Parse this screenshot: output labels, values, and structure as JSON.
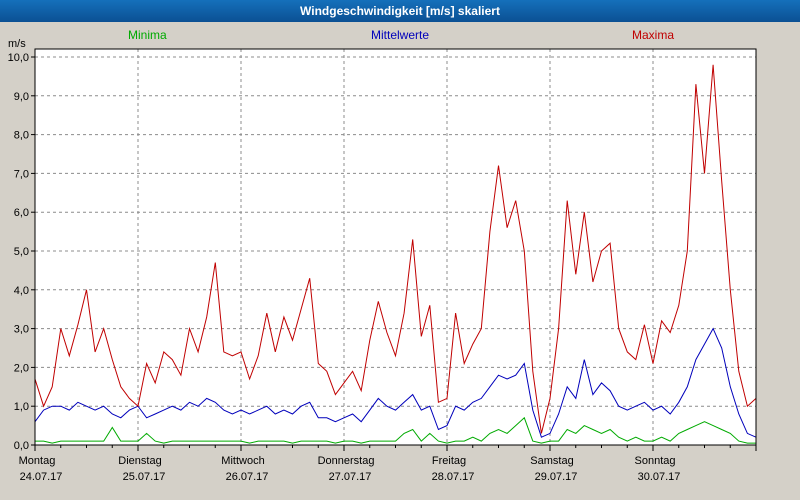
{
  "window": {
    "title": "Windgeschwindigkeit [m/s] skaliert"
  },
  "chart_data": {
    "type": "line",
    "title": "Windgeschwindigkeit [m/s] skaliert",
    "ylabel": "m/s",
    "ylim": [
      0,
      10
    ],
    "grid": true,
    "legend_position": "top",
    "y_ticks": [
      0,
      1,
      2,
      3,
      4,
      5,
      6,
      7,
      8,
      9,
      10
    ],
    "y_tick_labels": [
      "0,0",
      "1,0",
      "2,0",
      "3,0",
      "4,0",
      "5,0",
      "6,0",
      "7,0",
      "8,0",
      "9,0",
      "10,0"
    ],
    "x_days": [
      {
        "name": "Montag",
        "date": "24.07.17"
      },
      {
        "name": "Dienstag",
        "date": "25.07.17"
      },
      {
        "name": "Mittwoch",
        "date": "26.07.17"
      },
      {
        "name": "Donnerstag",
        "date": "27.07.17"
      },
      {
        "name": "Freitag",
        "date": "28.07.17"
      },
      {
        "name": "Samstag",
        "date": "29.07.17"
      },
      {
        "name": "Sonntag",
        "date": "30.07.17"
      }
    ],
    "sample_interval_hours": 2,
    "series": [
      {
        "name": "Minima",
        "color": "#00aa00",
        "values": [
          0.1,
          0.1,
          0.05,
          0.1,
          0.1,
          0.1,
          0.1,
          0.1,
          0.1,
          0.45,
          0.1,
          0.1,
          0.1,
          0.3,
          0.1,
          0.05,
          0.1,
          0.1,
          0.1,
          0.1,
          0.1,
          0.1,
          0.1,
          0.1,
          0.1,
          0.05,
          0.1,
          0.1,
          0.1,
          0.1,
          0.05,
          0.1,
          0.1,
          0.1,
          0.1,
          0.05,
          0.1,
          0.1,
          0.05,
          0.1,
          0.1,
          0.1,
          0.1,
          0.3,
          0.4,
          0.1,
          0.3,
          0.1,
          0.05,
          0.1,
          0.1,
          0.2,
          0.1,
          0.3,
          0.4,
          0.3,
          0.5,
          0.7,
          0.1,
          0.05,
          0.1,
          0.1,
          0.4,
          0.3,
          0.5,
          0.4,
          0.3,
          0.4,
          0.2,
          0.1,
          0.2,
          0.1,
          0.1,
          0.2,
          0.1,
          0.3,
          0.4,
          0.5,
          0.6,
          0.5,
          0.4,
          0.3,
          0.1,
          0.05,
          0.05
        ]
      },
      {
        "name": "Mittelwerte",
        "color": "#0000bb",
        "values": [
          0.6,
          0.9,
          1.0,
          1.0,
          0.9,
          1.1,
          1.0,
          0.9,
          1.0,
          0.8,
          0.7,
          0.9,
          1.0,
          0.7,
          0.8,
          0.9,
          1.0,
          0.9,
          1.1,
          1.0,
          1.2,
          1.1,
          0.9,
          0.8,
          0.9,
          0.8,
          0.9,
          1.0,
          0.8,
          0.9,
          0.8,
          1.0,
          1.1,
          0.7,
          0.7,
          0.6,
          0.7,
          0.8,
          0.6,
          0.9,
          1.2,
          1.0,
          0.9,
          1.1,
          1.3,
          0.9,
          1.0,
          0.4,
          0.5,
          1.0,
          0.9,
          1.1,
          1.2,
          1.5,
          1.8,
          1.7,
          1.8,
          2.1,
          0.9,
          0.2,
          0.3,
          0.8,
          1.5,
          1.2,
          2.2,
          1.3,
          1.6,
          1.4,
          1.0,
          0.9,
          1.0,
          1.1,
          0.9,
          1.0,
          0.8,
          1.1,
          1.5,
          2.2,
          2.6,
          3.0,
          2.5,
          1.5,
          0.8,
          0.3,
          0.2
        ]
      },
      {
        "name": "Maxima",
        "color": "#c00000",
        "values": [
          1.7,
          1.0,
          1.5,
          3.0,
          2.3,
          3.1,
          4.0,
          2.4,
          3.0,
          2.2,
          1.5,
          1.2,
          1.0,
          2.1,
          1.6,
          2.4,
          2.2,
          1.8,
          3.0,
          2.4,
          3.3,
          4.7,
          2.4,
          2.3,
          2.4,
          1.7,
          2.3,
          3.4,
          2.4,
          3.3,
          2.7,
          3.5,
          4.3,
          2.1,
          1.9,
          1.3,
          1.6,
          1.9,
          1.4,
          2.7,
          3.7,
          2.9,
          2.3,
          3.4,
          5.3,
          2.8,
          3.6,
          1.1,
          1.2,
          3.4,
          2.1,
          2.6,
          3.0,
          5.5,
          7.2,
          5.6,
          6.3,
          5.0,
          1.9,
          0.3,
          1.2,
          3.0,
          6.3,
          4.4,
          6.0,
          4.2,
          5.0,
          5.2,
          3.0,
          2.4,
          2.2,
          3.1,
          2.1,
          3.2,
          2.9,
          3.6,
          5.0,
          9.3,
          7.0,
          9.8,
          6.8,
          4.0,
          1.9,
          1.0,
          1.2
        ]
      }
    ]
  }
}
